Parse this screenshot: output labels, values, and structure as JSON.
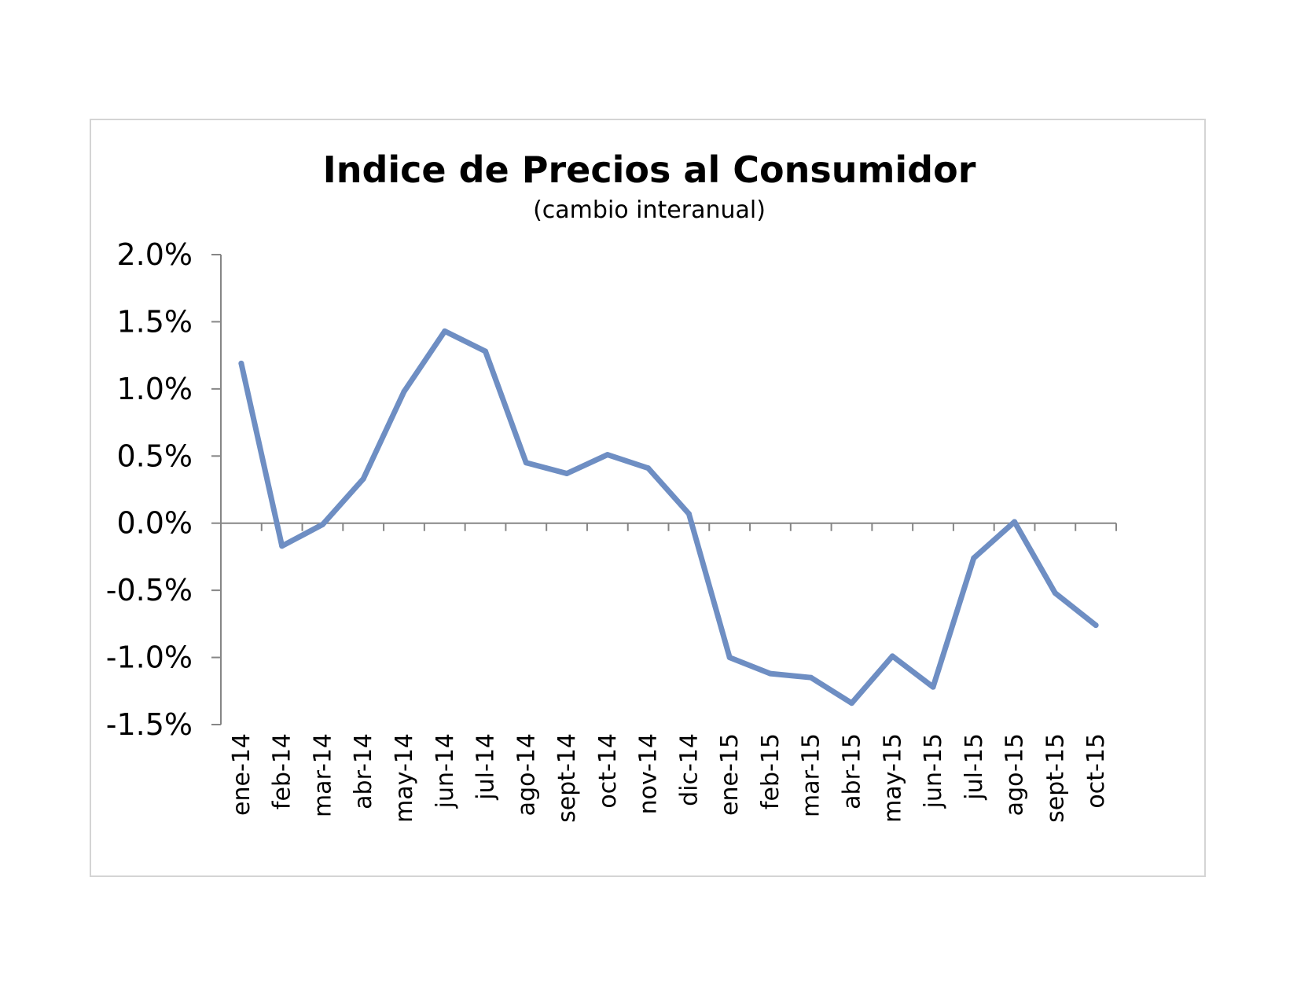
{
  "colors": {
    "series_line": "#6e8ec3",
    "axis": "#868686",
    "frame_border": "#d4d4d4",
    "text": "#000000"
  },
  "chart_data": {
    "type": "line",
    "title": "Indice de Precios al Consumidor",
    "subtitle": "(cambio interanual)",
    "xlabel": "",
    "ylabel": "",
    "categories": [
      "ene-14",
      "feb-14",
      "mar-14",
      "abr-14",
      "may-14",
      "jun-14",
      "jul-14",
      "ago-14",
      "sept-14",
      "oct-14",
      "nov-14",
      "dic-14",
      "ene-15",
      "feb-15",
      "mar-15",
      "abr-15",
      "may-15",
      "jun-15",
      "jul-15",
      "ago-15",
      "sept-15",
      "oct-15"
    ],
    "series": [
      {
        "values": [
          1.19,
          -0.17,
          -0.01,
          0.33,
          0.98,
          1.43,
          1.28,
          0.45,
          0.37,
          0.51,
          0.41,
          0.07,
          -1.0,
          -1.12,
          -1.15,
          -1.34,
          -0.99,
          -1.22,
          -0.26,
          0.01,
          -0.52,
          -0.76
        ]
      }
    ],
    "ylim": [
      -1.5,
      2.0
    ],
    "yticks": [
      2.0,
      1.5,
      1.0,
      0.5,
      0.0,
      -0.5,
      -1.0,
      -1.5
    ],
    "ytick_labels": [
      "2.0%",
      "1.5%",
      "1.0%",
      "0.5%",
      "0.0%",
      "-0.5%",
      "-1.0%",
      "-1.5%"
    ],
    "grid": false,
    "legend": "none"
  }
}
